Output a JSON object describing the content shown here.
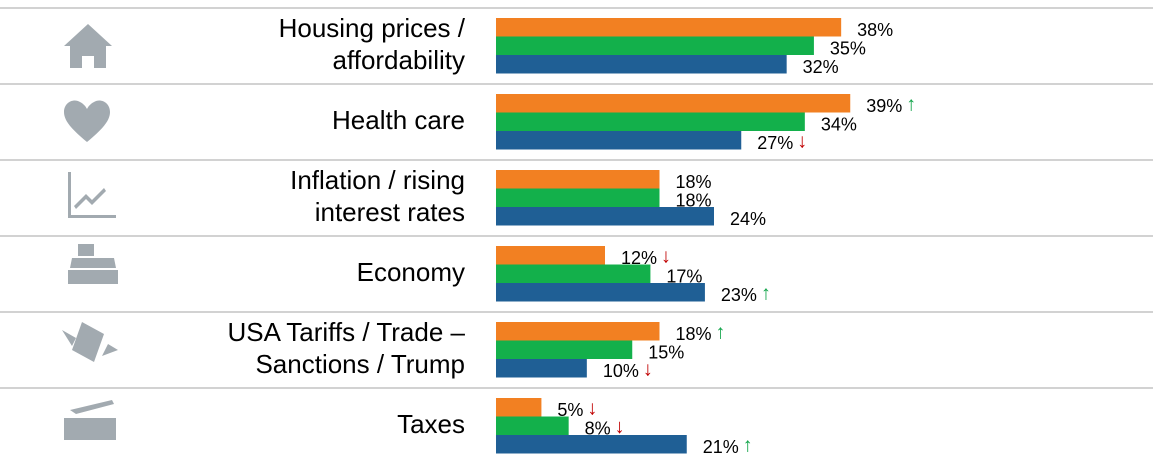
{
  "chart_data": {
    "type": "bar",
    "orientation": "horizontal",
    "categories": [
      [
        "Housing prices /",
        "affordability"
      ],
      [
        "Health care"
      ],
      [
        "Inflation / rising",
        "interest rates"
      ],
      [
        "Economy"
      ],
      [
        "USA Tariffs / Trade –",
        "Sanctions / Trump"
      ],
      [
        "Taxes"
      ]
    ],
    "xlim": [
      0,
      60
    ],
    "series": [
      {
        "color": "#f28022",
        "values": [
          38,
          39,
          18,
          12,
          18,
          5
        ],
        "value_labels": [
          "38%",
          "39%",
          "18%",
          "12%",
          "18%",
          "5%"
        ],
        "trends": [
          null,
          "↑",
          null,
          "↓",
          "↑",
          "↓"
        ]
      },
      {
        "color": "#13b04b",
        "values": [
          35,
          34,
          18,
          17,
          15,
          8
        ],
        "value_labels": [
          "35%",
          "34%",
          "18%",
          "17%",
          "15%",
          "8%"
        ],
        "trends": [
          null,
          null,
          null,
          null,
          null,
          "↓"
        ]
      },
      {
        "color": "#1f5f95",
        "values": [
          32,
          27,
          24,
          23,
          10,
          21
        ],
        "value_labels": [
          "32%",
          "27%",
          "24%",
          "23%",
          "10%",
          "21%"
        ],
        "trends": [
          null,
          "↓",
          null,
          "↑",
          "↓",
          "↑"
        ]
      }
    ]
  }
}
